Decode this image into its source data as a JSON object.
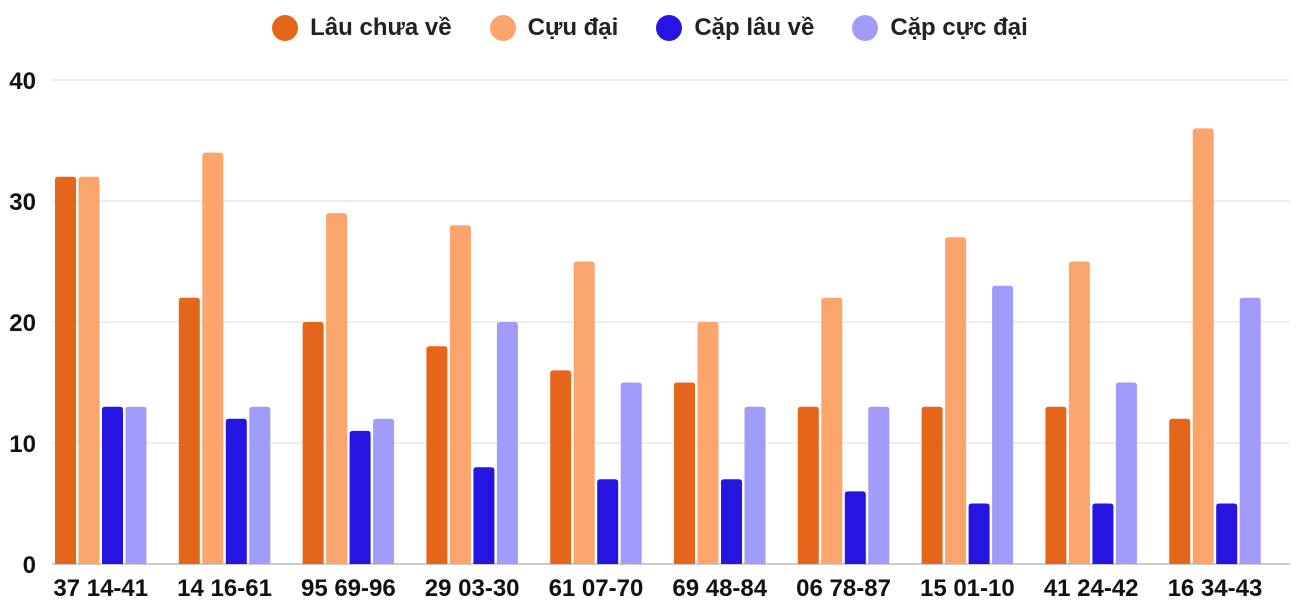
{
  "chart_data": {
    "type": "bar",
    "categories": [
      "37 14-41",
      "14 16-61",
      "95 69-96",
      "29 03-30",
      "61 07-70",
      "69 48-84",
      "06 78-87",
      "15 01-10",
      "41 24-42",
      "16 34-43"
    ],
    "series": [
      {
        "name": "Lâu chưa về",
        "color": "#e5651a",
        "values": [
          32,
          22,
          20,
          18,
          16,
          15,
          13,
          13,
          13,
          12
        ]
      },
      {
        "name": "Cựu đại",
        "color": "#fba56c",
        "values": [
          32,
          34,
          29,
          28,
          25,
          20,
          22,
          27,
          25,
          36
        ]
      },
      {
        "name": "Cặp lâu về",
        "color": "#2614e0",
        "values": [
          13,
          12,
          11,
          8,
          7,
          7,
          6,
          5,
          5,
          5
        ]
      },
      {
        "name": "Cặp cực đại",
        "color": "#a19bfb",
        "values": [
          13,
          13,
          12,
          20,
          15,
          13,
          13,
          23,
          15,
          22
        ]
      }
    ],
    "yticks": [
      "0",
      "10",
      "20",
      "30",
      "40"
    ],
    "ylim": [
      0,
      40
    ],
    "grid": true,
    "legend_position": "top-center",
    "title": "",
    "xlabel": "",
    "ylabel": ""
  }
}
